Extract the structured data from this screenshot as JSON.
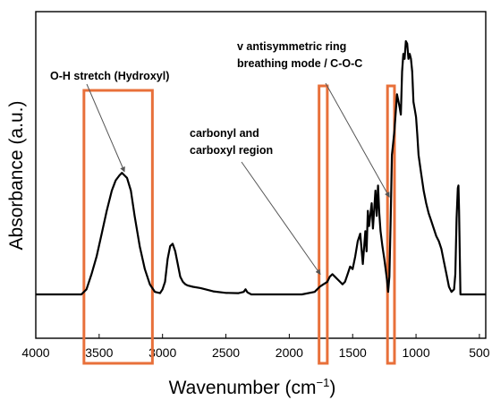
{
  "chart_data": {
    "type": "line",
    "title": "",
    "xlabel": "Wavenumber (cm",
    "xlabel_sup": "−1",
    "xlabel_close": ")",
    "ylabel": "Absorbance (a.u.)",
    "xlim": [
      4000,
      450
    ],
    "x_reversed": true,
    "ylim": [
      0,
      1
    ],
    "y_ticks_shown": false,
    "x_ticks": [
      4000,
      3500,
      3000,
      2500,
      2000,
      1500,
      1000,
      500
    ],
    "grid": false,
    "line_color": "#000000",
    "highlight_color": "#E8703A",
    "series": [
      {
        "x": [
          4000,
          3800,
          3640,
          3600,
          3560,
          3520,
          3480,
          3440,
          3400,
          3370,
          3340,
          3320,
          3300,
          3280,
          3250,
          3220,
          3180,
          3140,
          3100,
          3060,
          3020,
          3000,
          2980,
          2960,
          2940,
          2920,
          2900,
          2880,
          2860,
          2840,
          2820,
          2800,
          2760,
          2700,
          2600,
          2500,
          2400,
          2360,
          2345,
          2330,
          2300,
          2200,
          2100,
          2000,
          1900,
          1800,
          1780,
          1760,
          1745,
          1730,
          1715,
          1700,
          1680,
          1660,
          1640,
          1620,
          1600,
          1580,
          1560,
          1540,
          1520,
          1500,
          1480,
          1460,
          1440,
          1420,
          1400,
          1390,
          1380,
          1370,
          1350,
          1340,
          1320,
          1310,
          1300,
          1290,
          1280,
          1265,
          1250,
          1240,
          1230,
          1220,
          1210,
          1200,
          1190,
          1180,
          1170,
          1160,
          1150,
          1130,
          1120,
          1110,
          1100,
          1090,
          1080,
          1070,
          1060,
          1050,
          1040,
          1030,
          1020,
          1010,
          1000,
          990,
          980,
          960,
          940,
          920,
          900,
          880,
          860,
          840,
          820,
          800,
          780,
          760,
          740,
          720,
          700,
          690,
          680,
          670,
          665,
          660,
          650,
          640,
          600,
          500,
          450
        ],
        "y": [
          0.0,
          0.0,
          0.0,
          0.02,
          0.08,
          0.15,
          0.24,
          0.33,
          0.41,
          0.45,
          0.47,
          0.48,
          0.47,
          0.46,
          0.41,
          0.31,
          0.19,
          0.1,
          0.04,
          0.01,
          0.005,
          0.02,
          0.05,
          0.14,
          0.19,
          0.2,
          0.17,
          0.12,
          0.07,
          0.05,
          0.04,
          0.035,
          0.03,
          0.025,
          0.012,
          0.006,
          0.005,
          0.01,
          0.02,
          0.008,
          0.0,
          0.0,
          0.0,
          0.0,
          0.0,
          0.01,
          0.02,
          0.03,
          0.035,
          0.04,
          0.045,
          0.05,
          0.07,
          0.08,
          0.07,
          0.06,
          0.05,
          0.04,
          0.05,
          0.08,
          0.11,
          0.1,
          0.15,
          0.21,
          0.24,
          0.12,
          0.25,
          0.17,
          0.33,
          0.27,
          0.36,
          0.26,
          0.41,
          0.31,
          0.43,
          0.32,
          0.25,
          0.19,
          0.14,
          0.1,
          0.06,
          0.01,
          0.07,
          0.29,
          0.55,
          0.6,
          0.65,
          0.72,
          0.79,
          0.74,
          0.71,
          0.88,
          0.95,
          0.93,
          1.0,
          0.99,
          0.93,
          0.95,
          0.93,
          0.88,
          0.76,
          0.73,
          0.7,
          0.63,
          0.55,
          0.48,
          0.41,
          0.36,
          0.32,
          0.29,
          0.26,
          0.23,
          0.21,
          0.18,
          0.13,
          0.08,
          0.03,
          0.01,
          0.02,
          0.08,
          0.3,
          0.42,
          0.43,
          0.33,
          0.0,
          0.0,
          0.0,
          0.0,
          0.0
        ]
      }
    ],
    "highlights": [
      {
        "x_from": 3620,
        "x_to": 3080
      },
      {
        "x_from": 1765,
        "x_to": 1700
      },
      {
        "x_from": 1225,
        "x_to": 1170
      }
    ],
    "annotations": [
      {
        "lines": [
          "O-H stretch (Hydroxyl)"
        ],
        "arrow_to": {
          "x": 3300,
          "y": 0.47
        }
      },
      {
        "lines": [
          "carbonyl and",
          "carboxyl region"
        ],
        "arrow_to": {
          "x": 1755,
          "y": 0.065
        }
      },
      {
        "lines": [
          "v antisymmetric ring",
          "breathing mode / C-O-C"
        ],
        "arrow_to": {
          "x": 1210,
          "y": 0.37
        }
      }
    ]
  }
}
